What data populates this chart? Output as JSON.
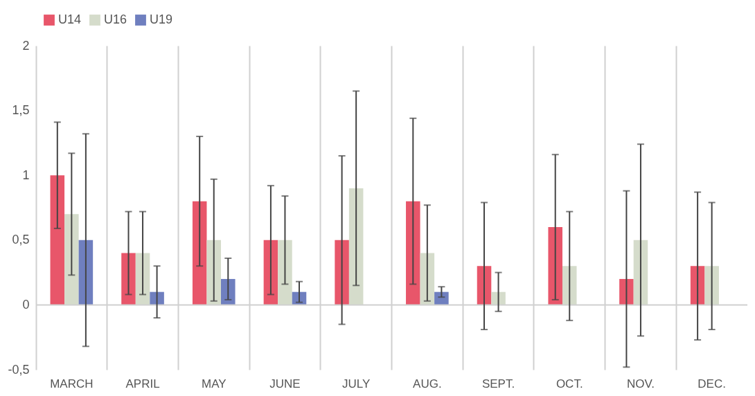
{
  "chart_data": {
    "type": "bar",
    "categories": [
      "MARCH",
      "APRIL",
      "MAY",
      "JUNE",
      "JULY",
      "AUG.",
      "SEPT.",
      "OCT.",
      "NOV.",
      "DEC."
    ],
    "series": [
      {
        "name": "U14",
        "color": "#e8566a",
        "values": [
          1.0,
          0.4,
          0.8,
          0.5,
          0.5,
          0.8,
          0.3,
          0.6,
          0.2,
          0.3
        ],
        "errors": [
          0.41,
          0.32,
          0.5,
          0.42,
          0.65,
          0.64,
          0.49,
          0.56,
          0.68,
          0.57
        ]
      },
      {
        "name": "U16",
        "color": "#d5dccb",
        "values": [
          0.7,
          0.4,
          0.5,
          0.5,
          0.9,
          0.4,
          0.1,
          0.3,
          0.5,
          0.3
        ],
        "errors": [
          0.47,
          0.32,
          0.47,
          0.34,
          0.75,
          0.37,
          0.15,
          0.42,
          0.74,
          0.49
        ]
      },
      {
        "name": "U19",
        "color": "#6f7fbf",
        "values": [
          0.5,
          0.1,
          0.2,
          0.1,
          null,
          0.1,
          null,
          null,
          null,
          null
        ],
        "errors": [
          0.82,
          0.2,
          0.16,
          0.08,
          null,
          0.04,
          null,
          null,
          null,
          null
        ]
      }
    ],
    "ylim": [
      -0.5,
      2
    ],
    "yticks": [
      {
        "value": -0.5,
        "label": "-0,5"
      },
      0,
      {
        "value": 0.5,
        "label": "0,5"
      },
      1,
      {
        "value": 1.5,
        "label": "1,5"
      },
      2
    ],
    "grid": "x",
    "legend": "top",
    "ref_lines": [
      {
        "axis": "y",
        "value": 0
      }
    ]
  }
}
